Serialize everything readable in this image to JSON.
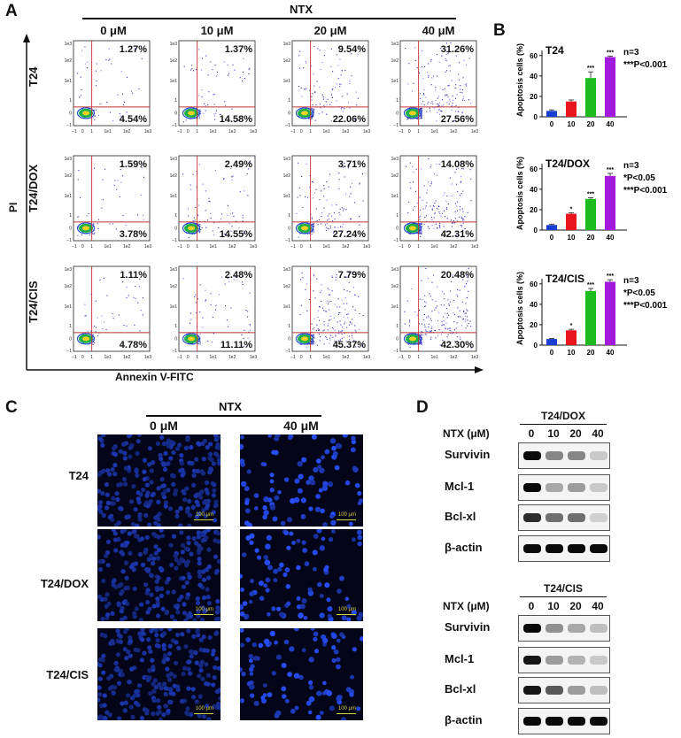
{
  "panel_labels": {
    "a": "A",
    "b": "B",
    "c": "C",
    "d": "D"
  },
  "panelA": {
    "treatment": "NTX",
    "concentrations": [
      "0 μM",
      "10 μM",
      "20 μM",
      "40 μM"
    ],
    "y_axis": "PI",
    "x_axis": "Annexin V-FITC",
    "x_ticks": [
      "−1",
      "0",
      "1",
      "1e1",
      "1e2",
      "1e3"
    ],
    "y_ticks": [
      "1e3",
      "1e2",
      "1e1",
      "1",
      "0",
      "−1"
    ],
    "rows": [
      {
        "label": "T24",
        "upper": [
          "1.27%",
          "1.37%",
          "9.54%",
          "31.26%"
        ],
        "lower": [
          "4.54%",
          "14.58%",
          "22.06%",
          "27.56%"
        ]
      },
      {
        "label": "T24/DOX",
        "upper": [
          "1.59%",
          "2.49%",
          "3.71%",
          "14.08%"
        ],
        "lower": [
          "3.78%",
          "14.55%",
          "27.24%",
          "42.31%"
        ]
      },
      {
        "label": "T24/CIS",
        "upper": [
          "1.11%",
          "2.48%",
          "7.79%",
          "20.48%"
        ],
        "lower": [
          "4.78%",
          "11.11%",
          "45.37%",
          "42.30%"
        ]
      }
    ]
  },
  "panelB": {
    "ylabel": "Apoptosis cells (%)",
    "colors": [
      "#1a3fd0",
      "#e8161c",
      "#1dbb1d",
      "#a21bdc"
    ],
    "ytick_labels": [
      "0",
      "20",
      "40",
      "60"
    ]
  },
  "chart_data": [
    {
      "type": "bar",
      "title": "T24",
      "categories": [
        "0",
        "10",
        "20",
        "40"
      ],
      "values": [
        5.8,
        15.0,
        38.0,
        58.5
      ],
      "errors": [
        1.0,
        1.5,
        6.0,
        1.0
      ],
      "significance": [
        "",
        "",
        "***",
        "***"
      ],
      "ylim": [
        0,
        65
      ],
      "ylabel": "Apoptosis cells (%)",
      "notes": [
        "n=3",
        "***P<0.001"
      ]
    },
    {
      "type": "bar",
      "title": "T24/DOX",
      "categories": [
        "0",
        "10",
        "20",
        "40"
      ],
      "values": [
        5.0,
        16.0,
        30.5,
        53.0
      ],
      "errors": [
        0.8,
        1.0,
        1.2,
        2.5
      ],
      "significance": [
        "",
        "*",
        "***",
        "***"
      ],
      "ylim": [
        0,
        65
      ],
      "ylabel": "Apoptosis cells (%)",
      "notes": [
        "n=3",
        "*P<0.05",
        "***P<0.001"
      ]
    },
    {
      "type": "bar",
      "title": "T24/CIS",
      "categories": [
        "0",
        "10",
        "20",
        "40"
      ],
      "values": [
        6.0,
        14.5,
        53.0,
        62.0
      ],
      "errors": [
        0.5,
        1.0,
        2.5,
        2.0
      ],
      "significance": [
        "",
        "*",
        "***",
        "***"
      ],
      "ylim": [
        0,
        65
      ],
      "ylabel": "Apoptosis cells (%)",
      "notes": [
        "n=3",
        "*P<0.05",
        "***P<0.001"
      ]
    }
  ],
  "panelC": {
    "treatment": "NTX",
    "columns": [
      "0 μM",
      "40 μM"
    ],
    "rows": [
      "T24",
      "T24/DOX",
      "T24/CIS"
    ],
    "scale_bar": "100 μm"
  },
  "panelD": {
    "blocks": [
      {
        "title": "T24/DOX",
        "header": "NTX (μM)",
        "lanes": [
          "0",
          "10",
          "20",
          "40"
        ],
        "proteins": [
          "Survivin",
          "Mcl-1",
          "Bcl-xl",
          "β-actin"
        ],
        "intensities": [
          [
            1.0,
            0.45,
            0.45,
            0.15
          ],
          [
            1.0,
            0.3,
            0.35,
            0.15
          ],
          [
            0.85,
            0.55,
            0.55,
            0.12
          ],
          [
            1.0,
            1.0,
            1.0,
            1.0
          ]
        ]
      },
      {
        "title": "T24/CIS",
        "header": "NTX (μM)",
        "lanes": [
          "0",
          "10",
          "20",
          "40"
        ],
        "proteins": [
          "Survivin",
          "Mcl-1",
          "Bcl-xl",
          "β-actin"
        ],
        "intensities": [
          [
            1.0,
            0.4,
            0.3,
            0.2
          ],
          [
            0.95,
            0.35,
            0.25,
            0.15
          ],
          [
            0.95,
            0.65,
            0.35,
            0.2
          ],
          [
            1.0,
            1.0,
            1.0,
            1.0
          ]
        ]
      }
    ]
  }
}
